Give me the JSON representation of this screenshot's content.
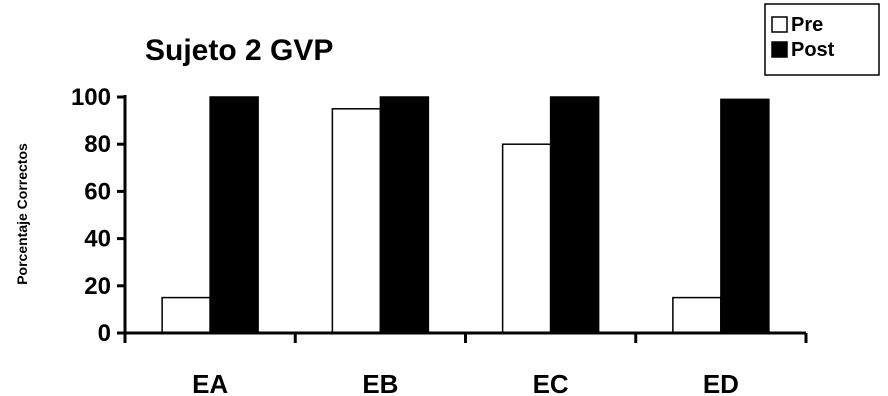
{
  "chart_data": {
    "type": "bar",
    "title": "Sujeto 2  GVP",
    "ylabel": "Porcentaje Correctos",
    "xlabel": "",
    "categories": [
      "EA",
      "EB",
      "EC",
      "ED"
    ],
    "series": [
      {
        "name": "Pre",
        "values": [
          15,
          95,
          80,
          15
        ],
        "color": "#ffffff"
      },
      {
        "name": "Post",
        "values": [
          100,
          100,
          100,
          99
        ],
        "color": "#000000"
      }
    ],
    "ylim": [
      0,
      100
    ],
    "yticks": [
      0,
      20,
      40,
      60,
      80,
      100
    ],
    "grid": false,
    "legend": "top-right"
  }
}
